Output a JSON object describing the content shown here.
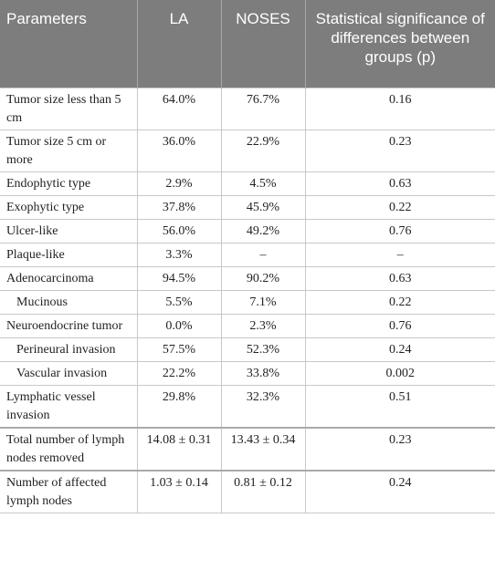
{
  "headers": [
    "Parameters",
    "LA",
    "NOSES",
    "Statistical significance of differences between groups (p)"
  ],
  "rows": [
    {
      "param": "Tumor size less than 5 cm",
      "la": "64.0%",
      "noses": "76.7%",
      "p": "0.16"
    },
    {
      "param": "Tumor size 5 cm or more",
      "la": "36.0%",
      "noses": "22.9%",
      "p": "0.23"
    },
    {
      "param": "Endophytic type",
      "la": "2.9%",
      "noses": "4.5%",
      "p": "0.63"
    },
    {
      "param": "Exophytic type",
      "la": "37.8%",
      "noses": "45.9%",
      "p": "0.22"
    },
    {
      "param": "Ulcer-like",
      "la": "56.0%",
      "noses": "49.2%",
      "p": "0.76"
    },
    {
      "param": "Plaque-like",
      "la": "3.3%",
      "noses": "–",
      "p": "–"
    },
    {
      "param": "Adenocarcinoma",
      "la": "94.5%",
      "noses": "90.2%",
      "p": "0.63"
    },
    {
      "param": "Mucinous",
      "la": "5.5%",
      "noses": "7.1%",
      "p": "0.22"
    },
    {
      "param": "Neuroendocrine tumor",
      "la": "0.0%",
      "noses": "2.3%",
      "p": "0.76"
    },
    {
      "param": "Perineural invasion",
      "la": "57.5%",
      "noses": "52.3%",
      "p": "0.24"
    },
    {
      "param": "Vascular invasion",
      "la": "22.2%",
      "noses": "33.8%",
      "p": "0.002"
    },
    {
      "param": "Lymphatic vessel invasion",
      "la": "29.8%",
      "noses": "32.3%",
      "p": "0.51"
    },
    {
      "param": "Total number of lymph nodes removed",
      "la": "14.08 ± 0.31",
      "noses": "13.43 ± 0.34",
      "p": "0.23"
    },
    {
      "param": "Number of affected lymph nodes",
      "la": "1.03 ± 0.14",
      "noses": "0.81 ± 0.12",
      "p": "0.24"
    }
  ]
}
